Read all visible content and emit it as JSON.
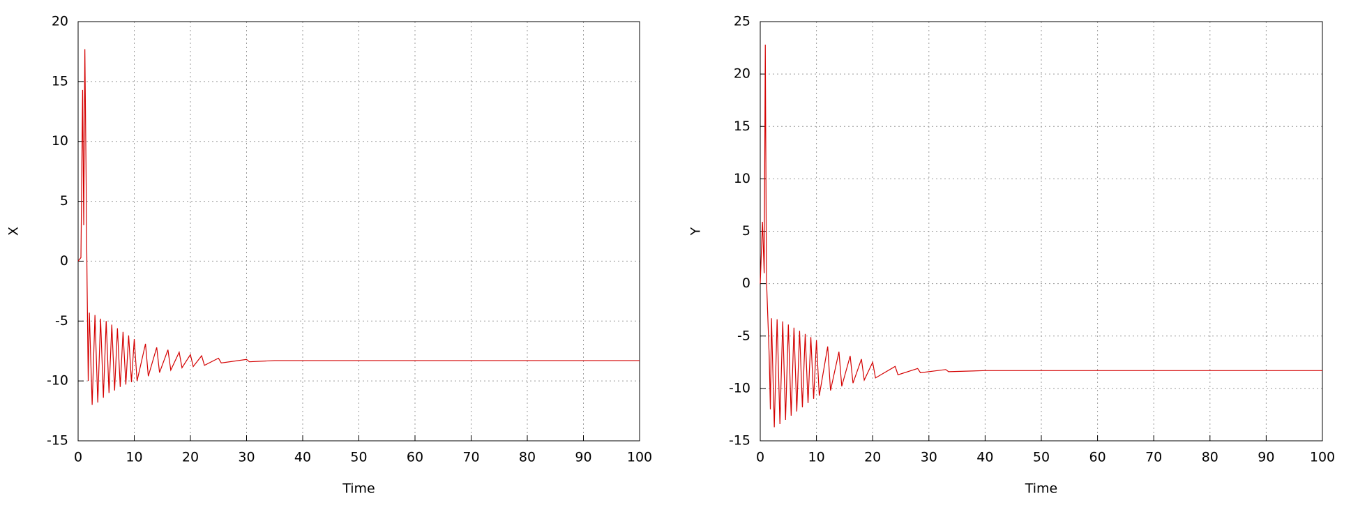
{
  "chart_data": [
    {
      "type": "line",
      "xlabel": "Time",
      "ylabel": "X",
      "color": "#d40000",
      "grid": true,
      "xlim": [
        0,
        100
      ],
      "xticks": [
        0,
        10,
        20,
        30,
        40,
        50,
        60,
        70,
        80,
        90,
        100
      ],
      "ylim": [
        -15,
        20
      ],
      "yticks": [
        -15,
        -10,
        -5,
        0,
        5,
        10,
        15,
        20
      ],
      "x": [
        0,
        0.5,
        0.8,
        1.0,
        1.2,
        1.4,
        1.6,
        1.8,
        2,
        2.5,
        3,
        3.5,
        4,
        4.5,
        5,
        5.5,
        6,
        6.5,
        7,
        7.5,
        8,
        8.5,
        9,
        9.5,
        10,
        10.5,
        12,
        12.5,
        14,
        14.5,
        16,
        16.5,
        18,
        18.5,
        20,
        20.5,
        22,
        22.5,
        25,
        25.5,
        30,
        30.5,
        35,
        100
      ],
      "values": [
        0,
        0.3,
        14.3,
        3,
        17.7,
        8.2,
        -2,
        -10,
        -4.3,
        -12,
        -4.5,
        -11.8,
        -4.8,
        -11.4,
        -5,
        -11,
        -5.3,
        -10.8,
        -5.6,
        -10.5,
        -5.9,
        -10.3,
        -6.2,
        -10.1,
        -6.5,
        -10,
        -6.9,
        -9.6,
        -7.2,
        -9.3,
        -7.4,
        -9.1,
        -7.6,
        -8.9,
        -7.8,
        -8.8,
        -7.9,
        -8.7,
        -8.1,
        -8.5,
        -8.2,
        -8.4,
        -8.3,
        -8.3
      ]
    },
    {
      "type": "line",
      "xlabel": "Time",
      "ylabel": "Y",
      "color": "#d40000",
      "grid": true,
      "xlim": [
        0,
        100
      ],
      "xticks": [
        0,
        10,
        20,
        30,
        40,
        50,
        60,
        70,
        80,
        90,
        100
      ],
      "ylim": [
        -15,
        25
      ],
      "yticks": [
        -15,
        -10,
        -5,
        0,
        5,
        10,
        15,
        20,
        25
      ],
      "x": [
        0,
        0.4,
        0.7,
        0.9,
        1.1,
        1.3,
        1.6,
        1.8,
        2,
        2.5,
        3,
        3.5,
        4,
        4.5,
        5,
        5.5,
        6,
        6.5,
        7,
        7.5,
        8,
        8.5,
        9,
        9.5,
        10,
        10.5,
        12,
        12.5,
        14,
        14.5,
        16,
        16.5,
        18,
        18.5,
        20,
        20.5,
        24,
        24.5,
        28,
        28.5,
        33,
        33.5,
        40,
        100
      ],
      "values": [
        0,
        5.9,
        1,
        22.8,
        0.5,
        -2.5,
        -7,
        -12,
        -3.3,
        -13.7,
        -3.4,
        -13.4,
        -3.6,
        -13,
        -3.9,
        -12.6,
        -4.2,
        -12.2,
        -4.5,
        -11.8,
        -4.8,
        -11.4,
        -5.1,
        -11,
        -5.4,
        -10.7,
        -6,
        -10.2,
        -6.5,
        -9.8,
        -6.9,
        -9.5,
        -7.2,
        -9.2,
        -7.5,
        -9,
        -7.9,
        -8.7,
        -8.1,
        -8.5,
        -8.2,
        -8.4,
        -8.3,
        -8.3
      ]
    }
  ]
}
